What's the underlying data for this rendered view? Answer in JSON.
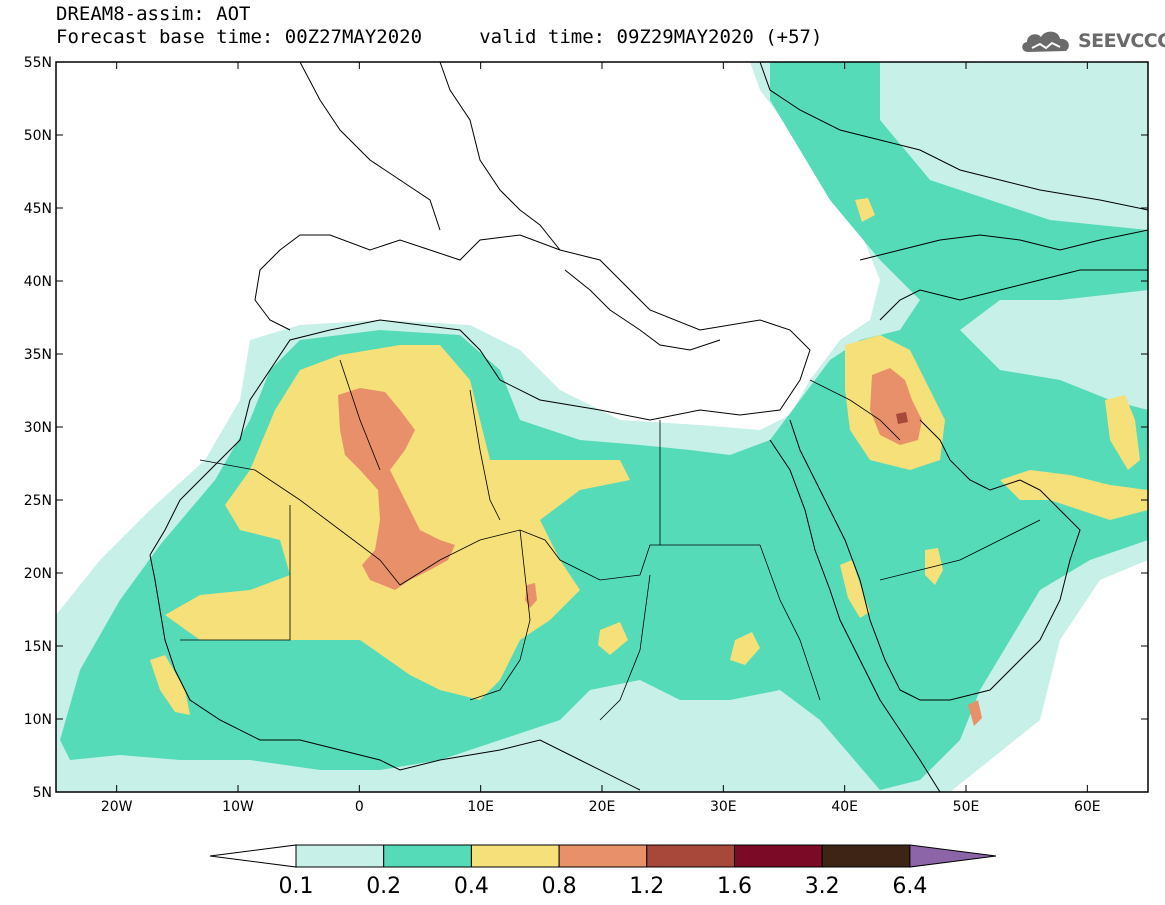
{
  "header": {
    "line1": "DREAM8-assim: AOT",
    "line2": "Forecast base time: 00Z27MAY2020     valid time: 09Z29MAY2020 (+57)"
  },
  "brand": {
    "name": "SEEVCCC",
    "icon": "cloud-logo-icon",
    "color": "#6a6a6a"
  },
  "map": {
    "lon_range": [
      -25,
      65
    ],
    "lat_range": [
      5,
      55
    ],
    "lat_ticks": [
      {
        "value": 55,
        "label": "55N"
      },
      {
        "value": 50,
        "label": "50N"
      },
      {
        "value": 45,
        "label": "45N"
      },
      {
        "value": 40,
        "label": "40N"
      },
      {
        "value": 35,
        "label": "35N"
      },
      {
        "value": 30,
        "label": "30N"
      },
      {
        "value": 25,
        "label": "25N"
      },
      {
        "value": 20,
        "label": "20N"
      },
      {
        "value": 15,
        "label": "15N"
      },
      {
        "value": 10,
        "label": "10N"
      },
      {
        "value": 5,
        "label": "5N"
      }
    ],
    "lon_ticks": [
      {
        "value": -20,
        "label": "20W"
      },
      {
        "value": -10,
        "label": "10W"
      },
      {
        "value": 0,
        "label": "0"
      },
      {
        "value": 10,
        "label": "10E"
      },
      {
        "value": 20,
        "label": "20E"
      },
      {
        "value": 30,
        "label": "30E"
      },
      {
        "value": 40,
        "label": "40E"
      },
      {
        "value": 50,
        "label": "50E"
      },
      {
        "value": 60,
        "label": "60E"
      }
    ]
  },
  "colorbar": {
    "labels": [
      "0.1",
      "0.2",
      "0.4",
      "0.8",
      "1.2",
      "1.6",
      "3.2",
      "6.4"
    ],
    "colors": [
      "#ffffff",
      "#c6f0e8",
      "#55dbb8",
      "#f5e07a",
      "#e8906a",
      "#a8483a",
      "#7a0a26",
      "#3e2414",
      "#8c64a8"
    ]
  },
  "field_colors": {
    "c1": "#c6f0e8",
    "c2": "#55dbb8",
    "c3": "#f5e07a",
    "c4": "#e8906a",
    "c5": "#a8483a"
  }
}
